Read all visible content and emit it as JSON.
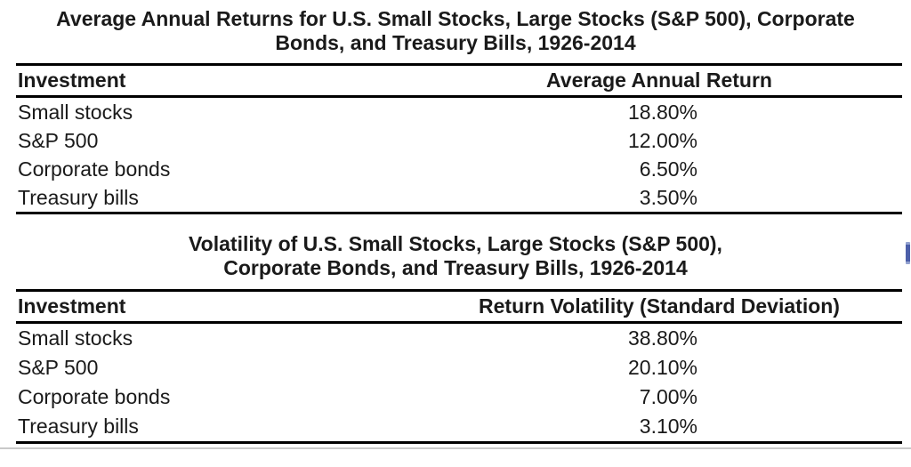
{
  "colors": {
    "text": "#1a1a1a",
    "rule": "#000000",
    "divider": "#c9c9c9",
    "scrollbar-thumb": "#4c5fa9"
  },
  "returns_table": {
    "title_line1": "Average Annual Returns for U.S. Small Stocks, Large Stocks (S&P 500), Corporate",
    "title_line2": "Bonds, and Treasury Bills, 1926-2014",
    "columns": {
      "investment": "Investment",
      "value": "Average Annual Return"
    },
    "rows": [
      {
        "investment": "Small stocks",
        "value": "18.80%"
      },
      {
        "investment": "S&P 500",
        "value": "12.00%"
      },
      {
        "investment": "Corporate bonds",
        "value": "6.50%"
      },
      {
        "investment": "Treasury bills",
        "value": "3.50%"
      }
    ]
  },
  "volatility_table": {
    "title_line1": "Volatility of U.S. Small Stocks, Large Stocks (S&P 500),",
    "title_line2": "Corporate Bonds, and Treasury Bills, 1926-2014",
    "columns": {
      "investment": "Investment",
      "value": "Return Volatility (Standard Deviation)"
    },
    "rows": [
      {
        "investment": "Small stocks",
        "value": "38.80%"
      },
      {
        "investment": "S&P 500",
        "value": "20.10%"
      },
      {
        "investment": "Corporate bonds",
        "value": "7.00%"
      },
      {
        "investment": "Treasury bills",
        "value": "3.10%"
      }
    ]
  }
}
